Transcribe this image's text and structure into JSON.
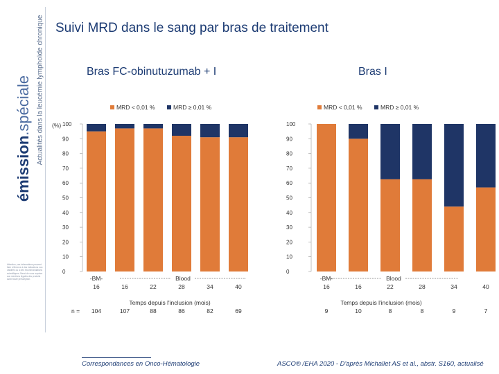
{
  "title": "Suivi MRD dans le sang par bras de traitement",
  "sidebar": {
    "brand_bold": "émission",
    "brand_light": ".spéciale",
    "tagline": "Actualités dans la leucémie lymphoïde chronique",
    "disclaimer": "Attention, ces informations peuvent faire référence à des indications non validées ou à des recommandations scientifiques. Merci de vous reporter aux mentions légales des produits avant toute prescription."
  },
  "footer": {
    "left": "Correspondances en Onco-Hématologie",
    "right": "ASCO® /EHA 2020 - D'après Michallet AS et al., abstr. S160, actualisé"
  },
  "colors": {
    "mrd_low": "#E07B39",
    "mrd_high": "#1F3566"
  },
  "chart_data": [
    {
      "type": "bar",
      "stacked": true,
      "title": "Bras FC-obinutuzumab + I",
      "y_unit_label": "(%)",
      "ylim": [
        0,
        100
      ],
      "yticks": [
        0,
        10,
        20,
        30,
        40,
        50,
        60,
        70,
        80,
        90,
        100
      ],
      "legend": [
        "MRD < 0,01 %",
        "MRD ≥ 0,01 %"
      ],
      "categories": [
        "BM-16",
        "16",
        "22",
        "28",
        "34",
        "40"
      ],
      "category_labels": [
        [
          "-BM-",
          "16"
        ],
        [
          "16"
        ],
        [
          "22"
        ],
        [
          "28"
        ],
        [
          "34"
        ],
        [
          "40"
        ]
      ],
      "blood_label": "Blood",
      "xlabel": "Temps depuis l'inclusion (mois)",
      "n_label": "n =",
      "n": [
        "104",
        "107",
        "88",
        "86",
        "82",
        "69"
      ],
      "series": [
        {
          "name": "MRD < 0,01 %",
          "values": [
            95,
            97,
            97,
            92,
            91,
            91
          ]
        },
        {
          "name": "MRD ≥ 0,01 %",
          "values": [
            5,
            3,
            3,
            8,
            9,
            9
          ]
        }
      ]
    },
    {
      "type": "bar",
      "stacked": true,
      "title": "Bras I",
      "ylim": [
        0,
        100
      ],
      "yticks": [
        0,
        10,
        20,
        30,
        40,
        50,
        60,
        70,
        80,
        90,
        100
      ],
      "legend": [
        "MRD < 0,01 %",
        "MRD ≥ 0,01 %"
      ],
      "categories": [
        "BM-16",
        "16",
        "22",
        "28",
        "34",
        "40"
      ],
      "category_labels": [
        [
          "-BM-",
          "16"
        ],
        [
          "16"
        ],
        [
          "22"
        ],
        [
          "28"
        ],
        [
          "34"
        ],
        [
          "40"
        ]
      ],
      "blood_label": "Blood",
      "xlabel": "Temps depuis l'inclusion (mois)",
      "n": [
        "9",
        "10",
        "8",
        "8",
        "9",
        "7"
      ],
      "series": [
        {
          "name": "MRD < 0,01 %",
          "values": [
            100,
            90,
            62.5,
            62.5,
            44,
            57
          ]
        },
        {
          "name": "MRD ≥ 0,01 %",
          "values": [
            0,
            10,
            37.5,
            37.5,
            56,
            43
          ]
        }
      ]
    }
  ]
}
